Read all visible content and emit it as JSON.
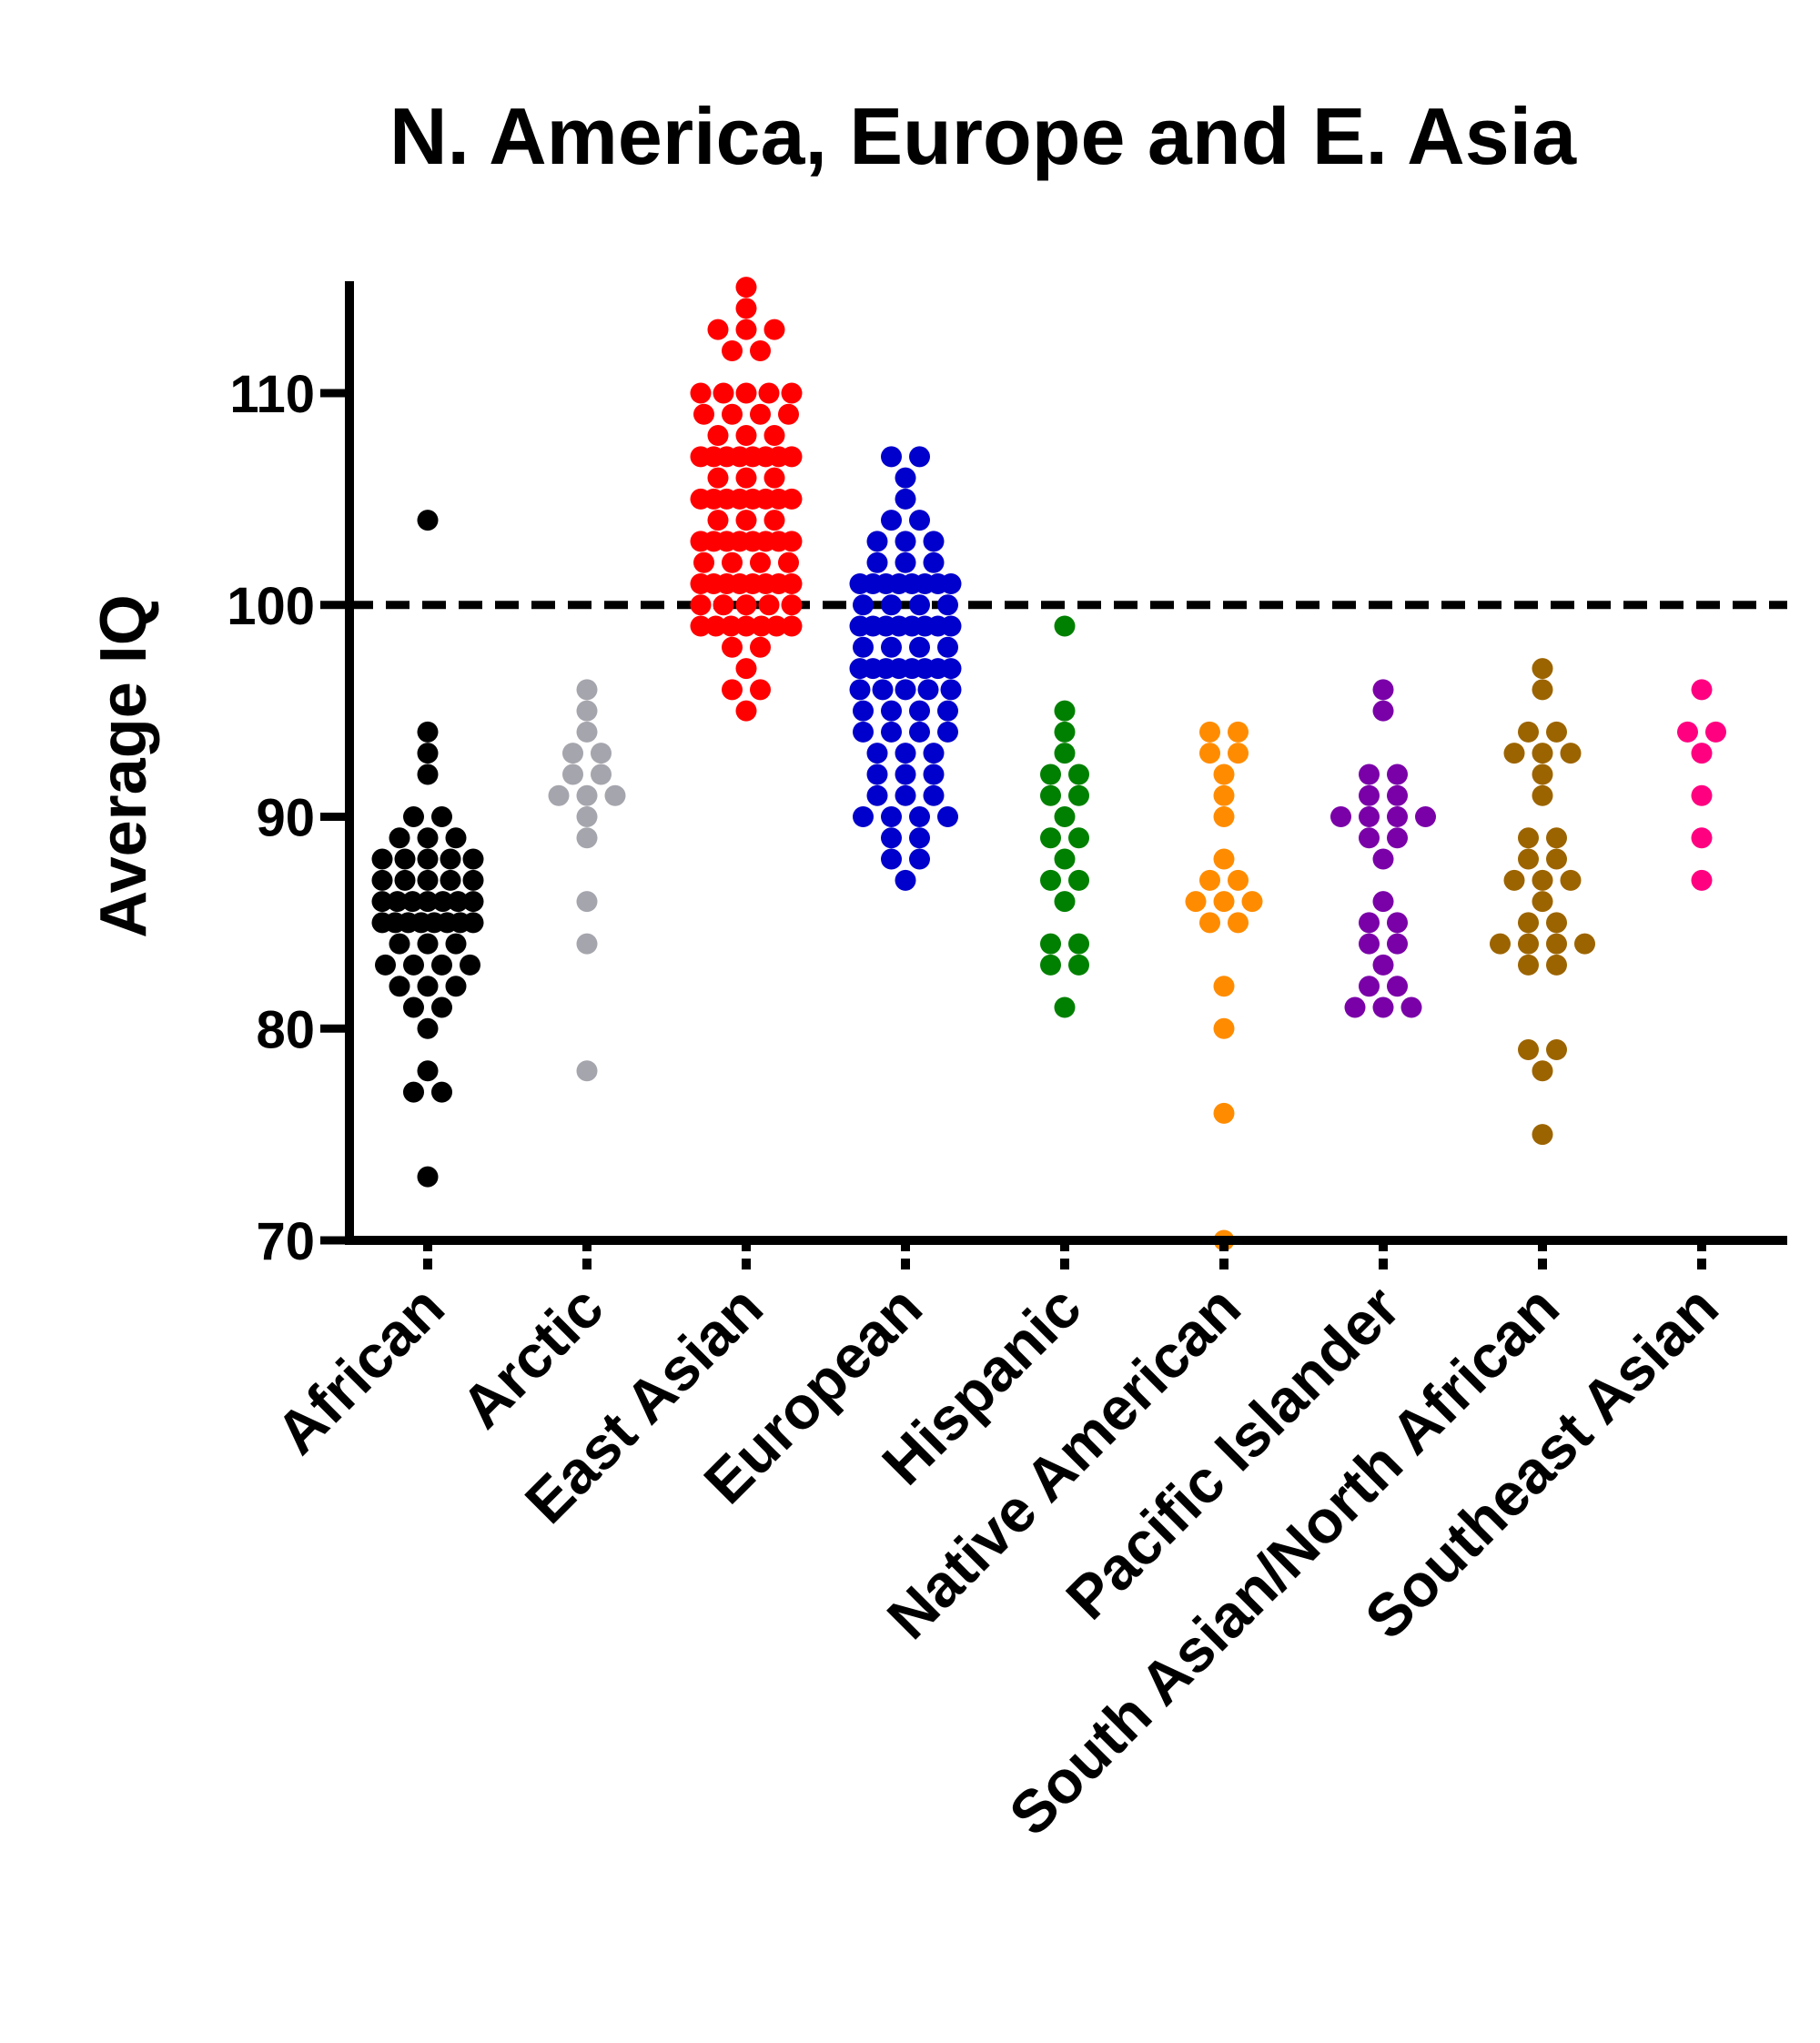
{
  "chart_data": {
    "type": "scatter",
    "subtype": "beeswarm",
    "title": "N. America,  Europe and  E. Asia",
    "xlabel": "",
    "ylabel": "Average IQ",
    "ylim": [
      70,
      115
    ],
    "yticks": [
      70,
      80,
      90,
      100,
      110
    ],
    "ytick_labels": [
      "70",
      "80",
      "90",
      "100",
      "110"
    ],
    "grid": false,
    "reference_line": {
      "y": 100,
      "style": "dashed",
      "color": "#000000"
    },
    "categories": [
      "African",
      "Arctic",
      "East Asian",
      "European",
      "Hispanic",
      "Native American",
      "Pacific Islander",
      "South Asian/North African",
      "Southeast Asian"
    ],
    "series": [
      {
        "category": "African",
        "color": "#000000",
        "counts": {
          "104": 1,
          "94": 1,
          "93": 1,
          "92": 1,
          "90": 2,
          "89": 3,
          "88": 5,
          "87": 5,
          "86": 7,
          "85": 8,
          "84": 3,
          "83": 4,
          "82": 3,
          "81": 2,
          "80": 1,
          "78": 1,
          "77": 2,
          "73": 1
        }
      },
      {
        "category": "Arctic",
        "color": "#a5a5ad",
        "counts": {
          "96": 1,
          "95": 1,
          "94": 1,
          "93": 2,
          "92": 2,
          "91": 3,
          "90": 1,
          "89": 1,
          "86": 1,
          "84": 1,
          "78": 1
        }
      },
      {
        "category": "East Asian",
        "color": "#ff0000",
        "counts": {
          "115": 1,
          "114": 1,
          "113": 3,
          "112": 2,
          "110": 5,
          "109": 4,
          "108": 3,
          "107": 8,
          "106": 3,
          "105": 8,
          "104": 3,
          "103": 8,
          "102": 4,
          "101": 8,
          "100": 5,
          "99": 7,
          "98": 2,
          "97": 1,
          "96": 2,
          "95": 1
        }
      },
      {
        "category": "European",
        "color": "#0000cc",
        "counts": {
          "107": 2,
          "106": 1,
          "105": 1,
          "104": 2,
          "103": 3,
          "102": 3,
          "101": 8,
          "100": 4,
          "99": 8,
          "98": 4,
          "97": 8,
          "96": 5,
          "95": 4,
          "94": 4,
          "93": 3,
          "92": 3,
          "91": 3,
          "90": 4,
          "89": 2,
          "88": 2,
          "87": 1
        }
      },
      {
        "category": "Hispanic",
        "color": "#008000",
        "counts": {
          "99": 1,
          "95": 1,
          "94": 1,
          "93": 1,
          "92": 2,
          "91": 2,
          "90": 1,
          "89": 2,
          "88": 1,
          "87": 2,
          "86": 1,
          "84": 2,
          "83": 2,
          "81": 1
        }
      },
      {
        "category": "Native American",
        "color": "#ff8c00",
        "counts": {
          "94": 2,
          "93": 2,
          "92": 1,
          "91": 1,
          "90": 1,
          "88": 1,
          "87": 2,
          "86": 3,
          "85": 2,
          "82": 1,
          "80": 1,
          "76": 1,
          "70": 1
        }
      },
      {
        "category": "Pacific Islander",
        "color": "#7a00a8",
        "counts": {
          "96": 1,
          "95": 1,
          "92": 2,
          "91": 2,
          "90": 4,
          "89": 2,
          "88": 1,
          "86": 1,
          "85": 2,
          "84": 2,
          "83": 1,
          "82": 2,
          "81": 3
        }
      },
      {
        "category": "South Asian/North African",
        "color": "#9c6400",
        "counts": {
          "97": 1,
          "96": 1,
          "94": 2,
          "93": 3,
          "92": 1,
          "91": 1,
          "89": 2,
          "88": 2,
          "87": 3,
          "86": 1,
          "85": 2,
          "84": 4,
          "83": 2,
          "79": 2,
          "78": 1,
          "75": 1
        }
      },
      {
        "category": "Southeast Asian",
        "color": "#ff0080",
        "counts": {
          "96": 1,
          "94": 2,
          "93": 1,
          "91": 1,
          "89": 1,
          "87": 1
        }
      }
    ]
  }
}
